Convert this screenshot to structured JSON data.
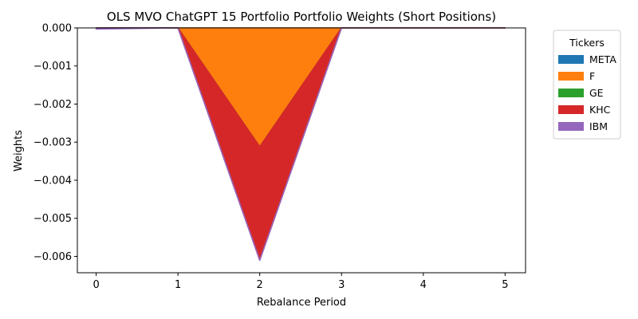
{
  "chart_data": {
    "type": "area",
    "title": "OLS MVO ChatGPT 15 Portfolio Portfolio Weights (Short Positions)",
    "xlabel": "Rebalance Period",
    "ylabel": "Weights",
    "x": [
      0,
      1,
      2,
      3,
      4,
      5
    ],
    "xticks": [
      "0",
      "1",
      "2",
      "3",
      "4",
      "5"
    ],
    "xlim": [
      -0.23,
      5.25
    ],
    "ylim": [
      -0.00643,
      0.0
    ],
    "yticks": [
      "0.000",
      "−0.001",
      "−0.002",
      "−0.003",
      "−0.004",
      "−0.005",
      "−0.006"
    ],
    "ytick_values": [
      0,
      -0.001,
      -0.002,
      -0.003,
      -0.004,
      -0.005,
      -0.006
    ],
    "legend_title": "Tickers",
    "legend_position": "outside-right",
    "grid": false,
    "series": [
      {
        "name": "META",
        "color": "#1f77b4",
        "values": [
          0,
          0,
          0,
          0,
          0,
          0
        ]
      },
      {
        "name": "F",
        "color": "#ff7f0e",
        "values": [
          0,
          0,
          -0.00312,
          0,
          0,
          0
        ]
      },
      {
        "name": "GE",
        "color": "#2ca02c",
        "values": [
          0,
          0,
          0,
          0,
          0,
          0
        ]
      },
      {
        "name": "KHC",
        "color": "#d62728",
        "values": [
          0,
          0,
          -0.00298,
          0,
          0,
          0
        ]
      },
      {
        "name": "IBM",
        "color": "#9467bd",
        "values": [
          -3e-05,
          0,
          0,
          0,
          0,
          0
        ]
      }
    ]
  }
}
